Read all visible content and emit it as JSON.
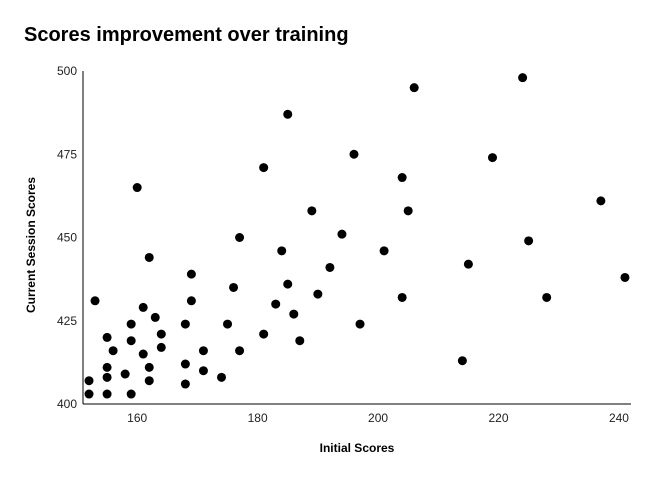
{
  "chart_data": {
    "type": "scatter",
    "title": "Scores improvement over training",
    "xlabel": "Initial Scores",
    "ylabel": "Current Session Scores",
    "xlim": [
      151,
      242
    ],
    "ylim": [
      400,
      500
    ],
    "xticks": [
      160,
      180,
      200,
      220,
      240
    ],
    "yticks": [
      400,
      425,
      450,
      475,
      500
    ],
    "grid": false,
    "legend": "none",
    "marker_color": "#000000",
    "points": [
      {
        "x": 152,
        "y": 407
      },
      {
        "x": 152,
        "y": 403
      },
      {
        "x": 153,
        "y": 431
      },
      {
        "x": 155,
        "y": 420
      },
      {
        "x": 155,
        "y": 411
      },
      {
        "x": 155,
        "y": 408
      },
      {
        "x": 155,
        "y": 403
      },
      {
        "x": 156,
        "y": 416
      },
      {
        "x": 158,
        "y": 409
      },
      {
        "x": 159,
        "y": 424
      },
      {
        "x": 159,
        "y": 419
      },
      {
        "x": 159,
        "y": 403
      },
      {
        "x": 160,
        "y": 465
      },
      {
        "x": 161,
        "y": 429
      },
      {
        "x": 161,
        "y": 415
      },
      {
        "x": 162,
        "y": 444
      },
      {
        "x": 162,
        "y": 411
      },
      {
        "x": 162,
        "y": 407
      },
      {
        "x": 163,
        "y": 426
      },
      {
        "x": 164,
        "y": 421
      },
      {
        "x": 164,
        "y": 417
      },
      {
        "x": 168,
        "y": 424
      },
      {
        "x": 168,
        "y": 412
      },
      {
        "x": 168,
        "y": 406
      },
      {
        "x": 169,
        "y": 439
      },
      {
        "x": 169,
        "y": 431
      },
      {
        "x": 171,
        "y": 416
      },
      {
        "x": 171,
        "y": 410
      },
      {
        "x": 174,
        "y": 408
      },
      {
        "x": 175,
        "y": 424
      },
      {
        "x": 176,
        "y": 435
      },
      {
        "x": 177,
        "y": 450
      },
      {
        "x": 177,
        "y": 416
      },
      {
        "x": 181,
        "y": 471
      },
      {
        "x": 181,
        "y": 421
      },
      {
        "x": 183,
        "y": 430
      },
      {
        "x": 184,
        "y": 446
      },
      {
        "x": 185,
        "y": 487
      },
      {
        "x": 185,
        "y": 436
      },
      {
        "x": 186,
        "y": 427
      },
      {
        "x": 187,
        "y": 419
      },
      {
        "x": 189,
        "y": 458
      },
      {
        "x": 190,
        "y": 433
      },
      {
        "x": 192,
        "y": 441
      },
      {
        "x": 194,
        "y": 451
      },
      {
        "x": 196,
        "y": 475
      },
      {
        "x": 197,
        "y": 424
      },
      {
        "x": 201,
        "y": 446
      },
      {
        "x": 204,
        "y": 468
      },
      {
        "x": 204,
        "y": 432
      },
      {
        "x": 205,
        "y": 458
      },
      {
        "x": 206,
        "y": 495
      },
      {
        "x": 214,
        "y": 413
      },
      {
        "x": 215,
        "y": 442
      },
      {
        "x": 219,
        "y": 474
      },
      {
        "x": 224,
        "y": 498
      },
      {
        "x": 225,
        "y": 449
      },
      {
        "x": 228,
        "y": 432
      },
      {
        "x": 237,
        "y": 461
      },
      {
        "x": 241,
        "y": 438
      }
    ]
  }
}
